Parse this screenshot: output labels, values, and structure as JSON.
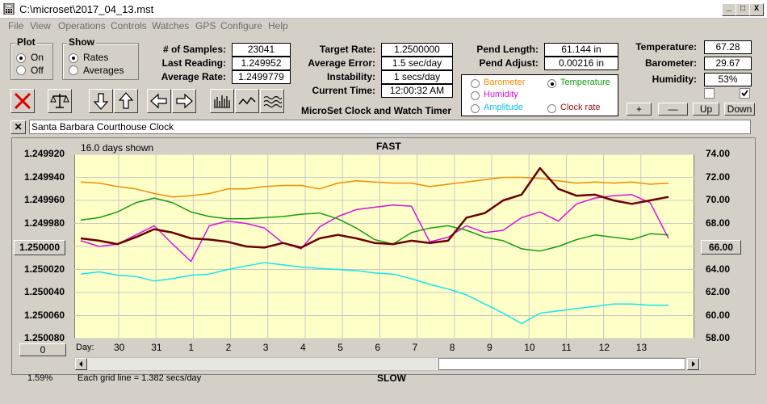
{
  "window": {
    "title": "C:\\microset\\2017_04_13.mst"
  },
  "menu": [
    "File",
    "View",
    "Operations",
    "Controls",
    "Watches",
    "GPS",
    "Configure",
    "Help"
  ],
  "plot": {
    "label": "Plot",
    "on": "On",
    "off": "Off",
    "selected": "On"
  },
  "show": {
    "label": "Show",
    "rates": "Rates",
    "averages": "Averages",
    "selected": "Rates"
  },
  "stats": {
    "samples_label": "# of Samples:",
    "samples": "23041",
    "last_reading_label": "Last Reading:",
    "last_reading": "1.249952",
    "average_rate_label": "Average Rate:",
    "average_rate": "1.2499779",
    "target_rate_label": "Target Rate:",
    "target_rate": "1.2500000",
    "average_error_label": "Average Error:",
    "average_error": "1.5 sec/day",
    "instability_label": "Instability:",
    "instability": "1 secs/day",
    "current_time_label": "Current Time:",
    "current_time": "12:00:32 AM",
    "pend_length_label": "Pend Length:",
    "pend_length": "61.144 in",
    "pend_adjust_label": "Pend Adjust:",
    "pend_adjust": "0.00216 in"
  },
  "app_name": "MicroSet Clock and Watch Timer",
  "sensors": {
    "barometer": "Barometer",
    "temperature": "Temperature",
    "humidity": "Humidity",
    "amplitude": "Amplitude",
    "clock_rate": "Clock rate",
    "selected": "Temperature"
  },
  "environment": {
    "temperature_label": "Temperature:",
    "temperature": "67.28",
    "barometer_label": "Barometer:",
    "barometer": "29.67",
    "humidity_label": "Humidity:",
    "humidity": "53%"
  },
  "scale_buttons": {
    "plus": "+",
    "minus": "—",
    "up": "Up",
    "down": "Down"
  },
  "clock_name": "Santa Barbara Courthouse Clock",
  "chart_data": {
    "type": "line",
    "top_label": "FAST",
    "bottom_label": "SLOW",
    "days_shown": "16.0 days shown",
    "grid_note": "Each grid line = 1.382 secs/day",
    "x_label": "Day:",
    "left_axis_labels": [
      "1.249920",
      "1.249940",
      "1.249960",
      "1.249980",
      "1.250000",
      "1.250020",
      "1.250040",
      "1.250060",
      "1.250080"
    ],
    "left_ylim": [
      1.24992,
      1.25008
    ],
    "right_axis_labels": [
      "74.00",
      "72.00",
      "70.00",
      "68.00",
      "66.00",
      "64.00",
      "62.00",
      "60.00",
      "58.00"
    ],
    "right_ylim": [
      58,
      74
    ],
    "x_categories": [
      "30",
      "31",
      "1",
      "2",
      "3",
      "4",
      "5",
      "6",
      "7",
      "8",
      "9",
      "10",
      "11",
      "12",
      "13"
    ],
    "left_marker": "1.250000",
    "right_marker": "66.00",
    "bottom_left_value": "0",
    "percent": "1.59%",
    "series_colors": {
      "clock_rate": "#6b0000",
      "barometer": "#f28c00",
      "temperature": "#12a012",
      "humidity": "#dd10dd",
      "amplitude": "#10e8f0"
    },
    "series": [
      {
        "name": "Clock rate",
        "x": [
          0,
          0.5,
          1,
          1.5,
          2,
          2.5,
          3,
          3.5,
          4,
          4.5,
          5,
          5.5,
          6,
          6.5,
          7,
          7.5,
          8,
          8.5,
          9,
          9.5,
          10,
          10.5,
          11,
          11.5,
          12,
          12.5,
          13,
          13.5,
          14,
          14.5,
          15,
          15.5,
          16
        ],
        "y": [
          1.249993,
          1.249995,
          1.249998,
          1.249992,
          1.249985,
          1.249988,
          1.249993,
          1.249994,
          1.249996,
          1.25,
          1.250001,
          1.249997,
          1.250001,
          1.249993,
          1.24999,
          1.249993,
          1.249997,
          1.249998,
          1.249995,
          1.249997,
          1.249995,
          1.249975,
          1.249971,
          1.24996,
          1.249955,
          1.249932,
          1.24995,
          1.249956,
          1.249955,
          1.24996,
          1.249963,
          1.24996,
          1.249957
        ]
      },
      {
        "name": "Barometer",
        "x": [
          0,
          0.5,
          1,
          1.5,
          2,
          2.5,
          3,
          3.5,
          4,
          4.5,
          5,
          5.5,
          6,
          6.5,
          7,
          7.5,
          8,
          8.5,
          9,
          9.5,
          10,
          10.5,
          11,
          11.5,
          12,
          12.5,
          13,
          13.5,
          14,
          14.5,
          15,
          15.5,
          16
        ],
        "y": [
          71.6,
          71.5,
          71.2,
          71.0,
          70.6,
          70.3,
          70.4,
          70.6,
          71.0,
          71.0,
          71.2,
          71.3,
          71.3,
          71.0,
          71.5,
          71.7,
          71.6,
          71.5,
          71.5,
          71.2,
          71.4,
          71.6,
          71.8,
          72.0,
          72.0,
          71.9,
          71.7,
          71.5,
          71.6,
          71.5,
          71.6,
          71.4,
          71.5
        ]
      },
      {
        "name": "Temperature",
        "x": [
          0,
          0.5,
          1,
          1.5,
          2,
          2.5,
          3,
          3.5,
          4,
          4.5,
          5,
          5.5,
          6,
          6.5,
          7,
          7.5,
          8,
          8.5,
          9,
          9.5,
          10,
          10.5,
          11,
          11.5,
          12,
          12.5,
          13,
          13.5,
          14,
          14.5,
          15,
          15.5,
          16
        ],
        "y": [
          68.3,
          68.5,
          69.0,
          69.8,
          70.2,
          69.8,
          69.0,
          68.6,
          68.4,
          68.4,
          68.5,
          68.6,
          68.8,
          68.9,
          68.4,
          67.6,
          66.6,
          66.2,
          67.2,
          67.6,
          67.8,
          67.4,
          66.8,
          66.5,
          65.8,
          65.6,
          66.0,
          66.6,
          67.0,
          66.8,
          66.6,
          67.1,
          67.0
        ]
      },
      {
        "name": "Humidity",
        "x": [
          0,
          0.5,
          1,
          1.5,
          2,
          2.5,
          3,
          3.5,
          4,
          4.5,
          5,
          5.5,
          6,
          6.5,
          7,
          7.5,
          8,
          8.5,
          9,
          9.5,
          10,
          10.5,
          11,
          11.5,
          12,
          12.5,
          13,
          13.5,
          14,
          14.5,
          15,
          15.5,
          16
        ],
        "y": [
          66.5,
          66.0,
          66.2,
          67.0,
          67.8,
          66.2,
          64.7,
          67.8,
          68.2,
          68.0,
          67.6,
          66.3,
          65.8,
          67.7,
          68.6,
          69.2,
          69.4,
          69.6,
          69.5,
          66.4,
          66.8,
          67.8,
          67.2,
          67.4,
          68.5,
          69.0,
          68.2,
          69.7,
          70.2,
          70.4,
          70.5,
          69.8,
          66.7
        ]
      },
      {
        "name": "Amplitude",
        "x": [
          0,
          0.5,
          1,
          1.5,
          2,
          2.5,
          3,
          3.5,
          4,
          4.5,
          5,
          5.5,
          6,
          6.5,
          7,
          7.5,
          8,
          8.5,
          9,
          9.5,
          10,
          10.5,
          11,
          11.5,
          12,
          12.5,
          13,
          13.5,
          14,
          14.5,
          15,
          15.5,
          16
        ],
        "y": [
          63.6,
          63.8,
          63.5,
          63.4,
          63.0,
          63.2,
          63.5,
          63.6,
          64.0,
          64.3,
          64.6,
          64.4,
          64.2,
          64.1,
          64.0,
          63.9,
          63.7,
          63.6,
          63.2,
          62.7,
          62.3,
          61.8,
          61.0,
          60.2,
          59.3,
          60.2,
          60.4,
          60.6,
          60.8,
          61.0,
          61.0,
          60.9,
          60.9
        ]
      }
    ]
  }
}
